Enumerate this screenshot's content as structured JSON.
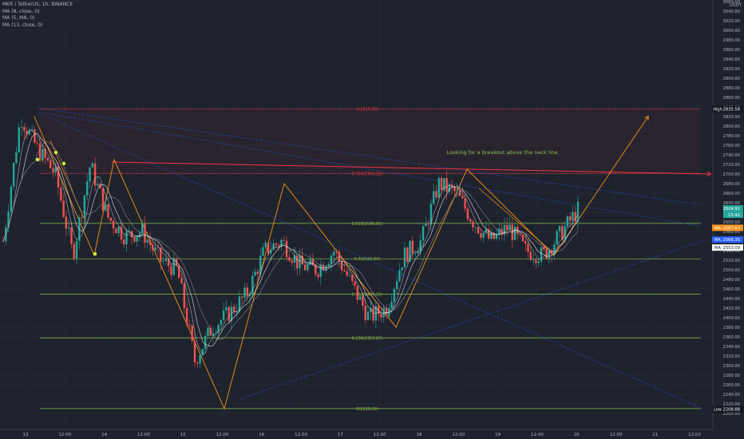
{
  "header": {
    "symbol_line": "MKR / TetherUS, 1h, BINANCE",
    "indicators": [
      "MA (8, close, 0)",
      "MA (5, MA, 0)",
      "MA (13, close, 0)"
    ],
    "currency": "USDT"
  },
  "price_axis": {
    "min": 2200,
    "max": 3050,
    "step": 20,
    "tick_labels": [
      "3060.00",
      "3040.00",
      "3020.00",
      "3000.00",
      "2980.00",
      "2960.00",
      "2940.00",
      "2920.00",
      "2900.00",
      "2880.00",
      "2860.00",
      "2840.00",
      "2820.00",
      "2800.00",
      "2780.00",
      "2760.00",
      "2740.00",
      "2720.00",
      "2700.00",
      "2680.00",
      "2660.00",
      "2640.00",
      "2620.00",
      "2600.00",
      "2580.00",
      "2560.00",
      "2540.00",
      "2520.00",
      "2500.00",
      "2480.00",
      "2460.00",
      "2440.00",
      "2420.00",
      "2400.00",
      "2380.00",
      "2360.00",
      "2340.00",
      "2320.00",
      "2300.00",
      "2280.00",
      "2260.00",
      "2240.00",
      "2220.00",
      "2200.00"
    ]
  },
  "time_axis": {
    "labels": [
      "13",
      "12:00",
      "14",
      "12:00",
      "15",
      "12:00",
      "16",
      "12:00",
      "17",
      "12:00",
      "18",
      "12:00",
      "19",
      "12:00",
      "20",
      "12:00",
      "21",
      "12:00"
    ]
  },
  "price_badges": {
    "high": {
      "label": "High",
      "value": "2835.58",
      "color": "#2962ff"
    },
    "current": {
      "value": "2624.91",
      "sub": "15:42",
      "color": "#26a69a"
    },
    "ma1": {
      "label": "MA",
      "value": "2587.67",
      "color": "#f7931a"
    },
    "ma2": {
      "label": "MA",
      "value": "2566.35",
      "color": "#2962ff"
    },
    "ma3": {
      "label": "MA",
      "value": "2553.09",
      "color": "#ffffff"
    },
    "low": {
      "label": "Low",
      "value": "2208.88",
      "color": "#2962ff"
    }
  },
  "fib_levels": [
    {
      "label": "1(2835.58)",
      "price": 2835.58,
      "color": "#f23645"
    },
    {
      "label": "0.786(2701.22)",
      "price": 2701.22,
      "color": "#f23645"
    },
    {
      "label": "0.618(2596.85)",
      "price": 2596.85,
      "color": "#8bc34a"
    },
    {
      "label": "0.5(2523.03)",
      "price": 2523.03,
      "color": "#8bc34a"
    },
    {
      "label": "0.382(2449.21)",
      "price": 2449.21,
      "color": "#8bc34a"
    },
    {
      "label": "0.236(2357.87)",
      "price": 2357.87,
      "color": "#8bc34a"
    },
    {
      "label": "0(2210.22)",
      "price": 2210.22,
      "color": "#8bc34a"
    }
  ],
  "annotation": {
    "text": "Looking for a breakout above the neck line.",
    "color": "#8bc34a"
  },
  "colors": {
    "background": "#1e222d",
    "up": "#26a69a",
    "down": "#ef5350",
    "grid": "#2a2e39",
    "zigzag": "#f7931a",
    "neckline": "#f23645",
    "channel": "#2962ff"
  },
  "chart_data": {
    "type": "candlestick",
    "title": "MKR / TetherUS, 1h, BINANCE",
    "x_range": [
      "13",
      "21 12:00"
    ],
    "ylim": [
      2200,
      3050
    ],
    "zigzag_pivots": [
      2820,
      2530,
      2730,
      2210,
      2680,
      2380,
      2710,
      2530,
      2820
    ],
    "last_price": 2624.91,
    "series_close_approx": [
      2560,
      2820,
      2750,
      2700,
      2530,
      2720,
      2610,
      2570,
      2580,
      2520,
      2500,
      2310,
      2380,
      2410,
      2450,
      2540,
      2560,
      2510,
      2500,
      2540,
      2470,
      2400,
      2420,
      2530,
      2560,
      2680,
      2660,
      2600,
      2560,
      2590,
      2540,
      2530,
      2575,
      2624.91
    ]
  }
}
